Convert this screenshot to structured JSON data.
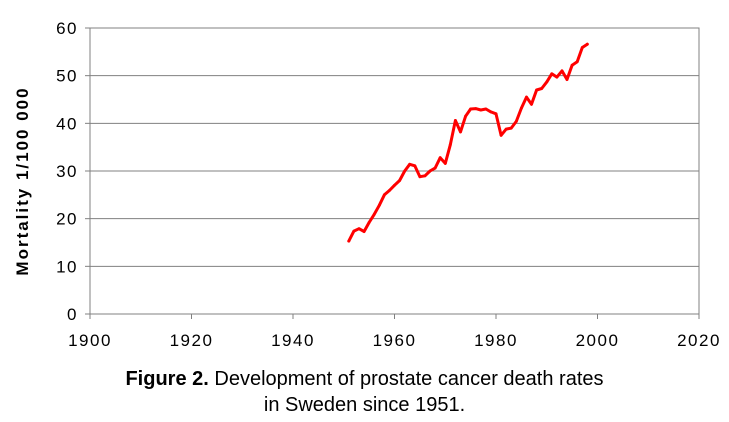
{
  "chart_data": {
    "type": "line",
    "title": "",
    "xlabel": "",
    "ylabel": "Mortality 1/100 000",
    "xlim": [
      1900,
      2020
    ],
    "ylim": [
      0,
      60
    ],
    "x_ticks": [
      "1900",
      "1920",
      "1940",
      "1960",
      "1980",
      "2000",
      "2020"
    ],
    "y_ticks": [
      "0",
      "10",
      "20",
      "30",
      "40",
      "50",
      "60"
    ],
    "grid": "horizontal",
    "legend": "none",
    "series": [
      {
        "color": "#ff0000",
        "x": [
          1951,
          1952,
          1953,
          1954,
          1955,
          1956,
          1957,
          1958,
          1959,
          1960,
          1961,
          1962,
          1963,
          1964,
          1965,
          1966,
          1967,
          1968,
          1969,
          1970,
          1971,
          1972,
          1973,
          1974,
          1975,
          1976,
          1977,
          1978,
          1979,
          1980,
          1981,
          1982,
          1983,
          1984,
          1985,
          1986,
          1987,
          1988,
          1989,
          1990,
          1991,
          1992,
          1993,
          1994,
          1995,
          1996,
          1997,
          1998
        ],
        "y": [
          15.3,
          17.4,
          17.9,
          17.3,
          19.2,
          20.9,
          22.8,
          25.0,
          25.9,
          27.0,
          28.0,
          30.0,
          31.4,
          31.1,
          28.8,
          29.0,
          30.0,
          30.6,
          32.8,
          31.6,
          35.5,
          40.6,
          38.2,
          41.5,
          43.0,
          43.1,
          42.8,
          43.0,
          42.4,
          42.0,
          37.5,
          38.8,
          39.0,
          40.4,
          43.2,
          45.5,
          44.0,
          47.0,
          47.3,
          48.7,
          50.4,
          49.7,
          51.0,
          49.2,
          52.2,
          52.9,
          55.9,
          56.6
        ]
      }
    ]
  },
  "caption": {
    "label": "Figure 2.",
    "line1": "Development of prostate cancer death rates",
    "line2": "in Sweden since 1951."
  }
}
